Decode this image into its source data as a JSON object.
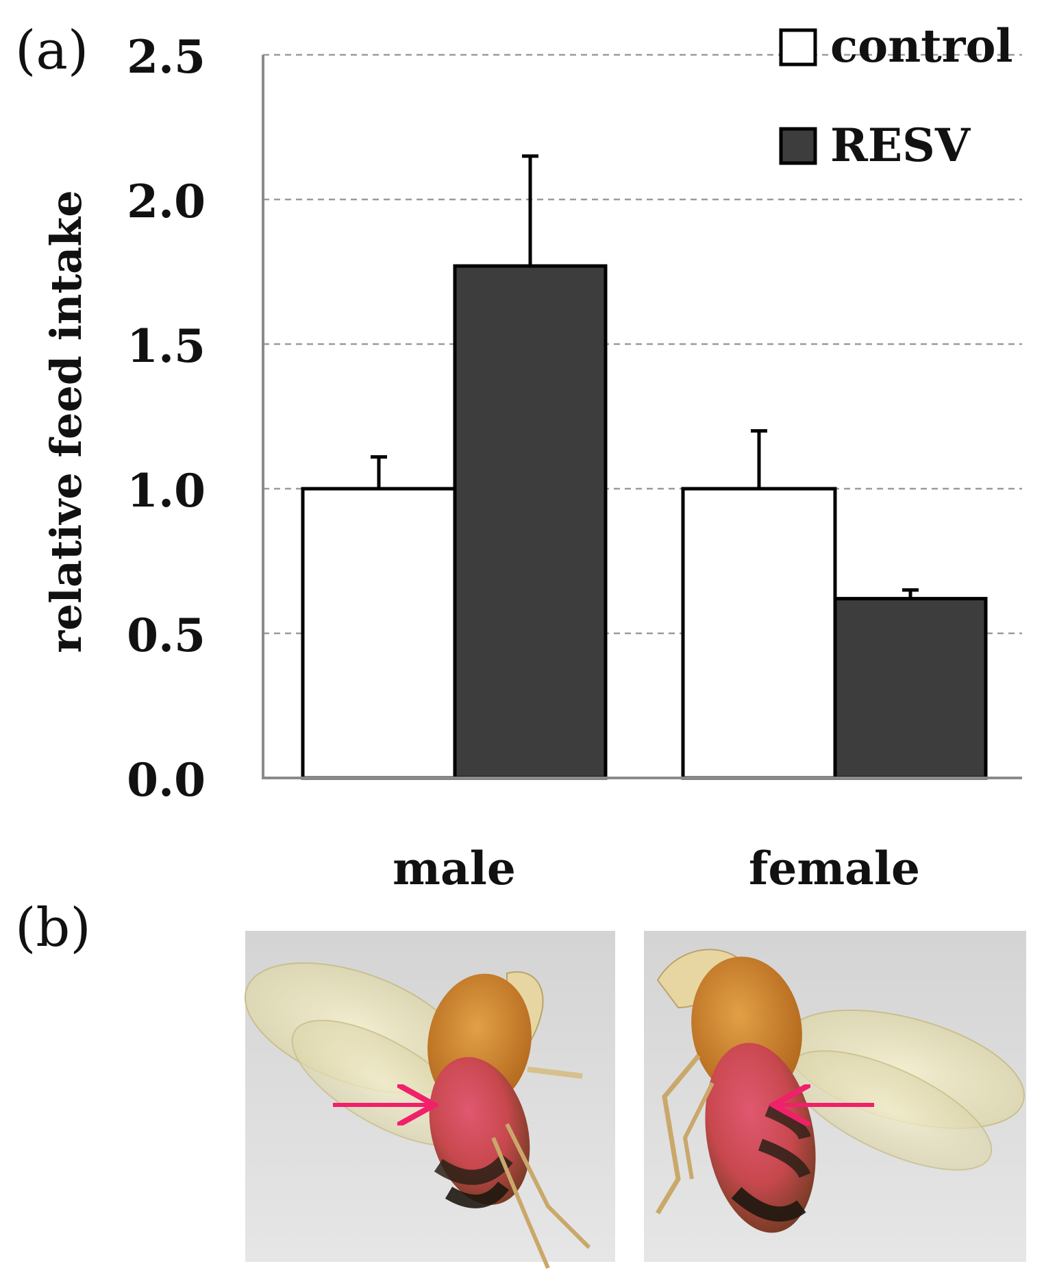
{
  "panels": {
    "a": "(a)",
    "b": "(b)"
  },
  "colors": {
    "control": "#ffffff",
    "resv": "#3d3d3d",
    "arrow": "#f0206a",
    "axis": "#8a8a8a",
    "grid": "#9a9a9a"
  },
  "chart_data": {
    "type": "bar",
    "title": "",
    "xlabel": "",
    "ylabel": "relative feed intake",
    "ylim": [
      0,
      2.5
    ],
    "yticks": [
      0,
      0.5,
      1,
      1.5,
      2,
      2.5
    ],
    "ytick_labels": [
      "0.0",
      "0.5",
      "1.0",
      "1.5",
      "2.0",
      "2.5"
    ],
    "grid": true,
    "legend_position": "top-right",
    "categories": [
      "male",
      "female"
    ],
    "series": [
      {
        "name": "control",
        "values": [
          1.0,
          1.0
        ],
        "errors": [
          0.11,
          0.2
        ]
      },
      {
        "name": "RESV",
        "values": [
          1.77,
          0.62
        ],
        "errors": [
          0.38,
          0.03
        ]
      }
    ]
  },
  "photos": [
    {
      "name": "male"
    },
    {
      "name": "female"
    }
  ]
}
